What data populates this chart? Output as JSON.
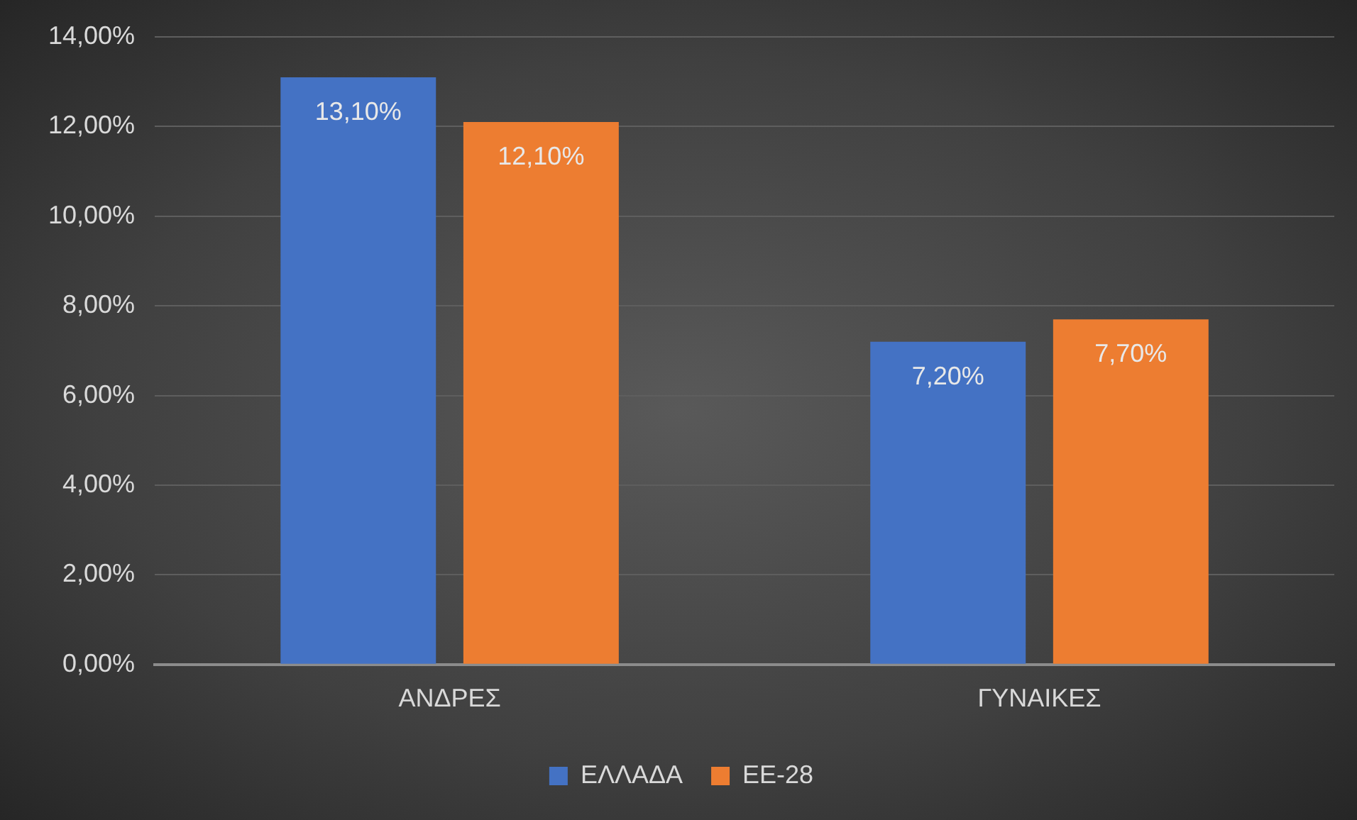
{
  "chart_data": {
    "type": "bar",
    "categories": [
      "ΑΝΔΡΕΣ",
      "ΓΥΝΑΙΚΕΣ"
    ],
    "series": [
      {
        "name": "ΕΛΛΑΔΑ",
        "color": "#4472c4",
        "values": [
          13.1,
          7.2
        ],
        "value_labels": [
          "13,10%",
          "7,20%"
        ]
      },
      {
        "name": "ΕΕ-28",
        "color": "#ed7d31",
        "values": [
          12.1,
          7.7
        ],
        "value_labels": [
          "12,10%",
          "7,70%"
        ]
      }
    ],
    "ylim": [
      0,
      14
    ],
    "yticks": [
      {
        "value": 0,
        "label": "0,00%"
      },
      {
        "value": 2,
        "label": "2,00%"
      },
      {
        "value": 4,
        "label": "4,00%"
      },
      {
        "value": 6,
        "label": "6,00%"
      },
      {
        "value": 8,
        "label": "8,00%"
      },
      {
        "value": 10,
        "label": "10,00%"
      },
      {
        "value": 12,
        "label": "12,00%"
      },
      {
        "value": 14,
        "label": "14,00%"
      }
    ],
    "grid": "y",
    "legend": "bottom"
  }
}
